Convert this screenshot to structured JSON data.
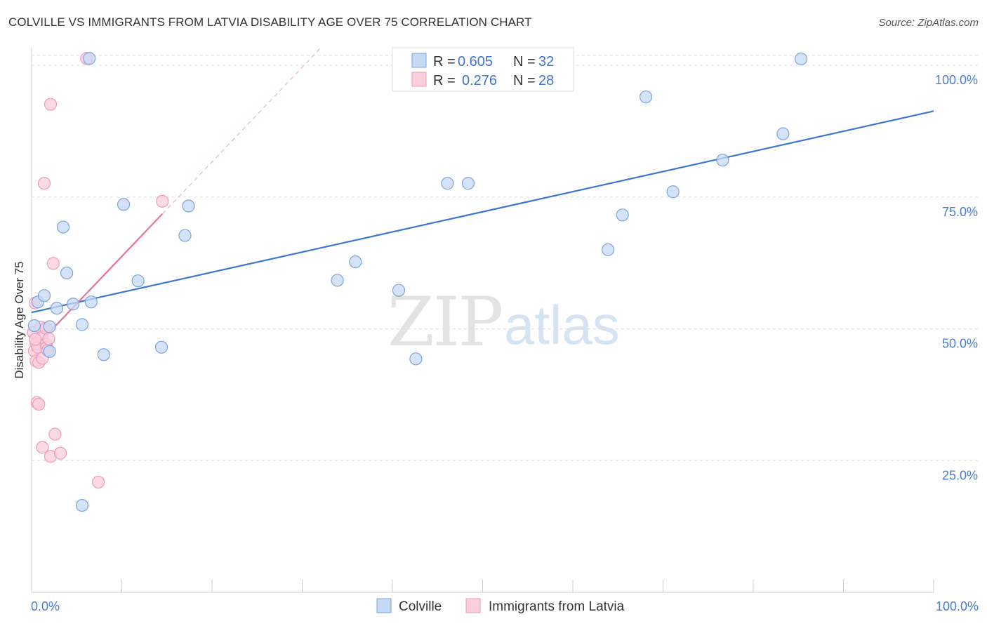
{
  "title": "COLVILLE VS IMMIGRANTS FROM LATVIA DISABILITY AGE OVER 75 CORRELATION CHART",
  "source": "Source: ZipAtlas.com",
  "watermark": {
    "zip": "ZIP",
    "atlas": "atlas"
  },
  "colors": {
    "blue": "#3a78d0",
    "blue_fill": "#c6d9f4",
    "blue_stroke": "#7ba4dc",
    "pink": "#e8729a",
    "pink_fill": "#f9cedd",
    "pink_stroke": "#ee9ab8",
    "grid": "#dddddd",
    "tick_text": "#4a7bd0"
  },
  "legend": {
    "r_label": "R =",
    "n_label": "N =",
    "rows": [
      {
        "r": "0.605",
        "n": "32"
      },
      {
        "r": "0.276",
        "n": "28"
      }
    ]
  },
  "chart_data": {
    "type": "scatter",
    "title": "COLVILLE VS IMMIGRANTS FROM LATVIA DISABILITY AGE OVER 75 CORRELATION CHART",
    "xlabel": "",
    "ylabel": "Disability Age Over 75",
    "xlim": [
      0,
      100
    ],
    "ylim": [
      0,
      102
    ],
    "x_tick_labels": [
      "0.0%",
      "100.0%"
    ],
    "y_ticks": [
      25,
      50,
      75,
      100
    ],
    "y_tick_labels": [
      "25.0%",
      "50.0%",
      "75.0%",
      "100.0%"
    ],
    "grid": true,
    "legend_position": "top-center",
    "series": [
      {
        "name": "Colville",
        "color": "#3a78d0",
        "points": [
          [
            0.3,
            50.6
          ],
          [
            0.7,
            55.1
          ],
          [
            1.4,
            56.3
          ],
          [
            2.0,
            45.7
          ],
          [
            2.0,
            50.4
          ],
          [
            2.8,
            53.9
          ],
          [
            3.5,
            69.3
          ],
          [
            3.9,
            60.6
          ],
          [
            4.6,
            54.7
          ],
          [
            5.6,
            50.8
          ],
          [
            5.6,
            16.5
          ],
          [
            6.4,
            101.3
          ],
          [
            6.6,
            55.1
          ],
          [
            8.0,
            45.1
          ],
          [
            10.2,
            73.6
          ],
          [
            11.8,
            59.1
          ],
          [
            14.4,
            46.5
          ],
          [
            17.0,
            67.7
          ],
          [
            17.4,
            73.3
          ],
          [
            33.9,
            59.2
          ],
          [
            35.9,
            62.7
          ],
          [
            40.7,
            57.3
          ],
          [
            42.6,
            44.3
          ],
          [
            46.1,
            77.6
          ],
          [
            48.4,
            77.6
          ],
          [
            63.9,
            65.0
          ],
          [
            65.5,
            71.6
          ],
          [
            68.1,
            94.0
          ],
          [
            71.1,
            76.0
          ],
          [
            76.6,
            82.0
          ],
          [
            83.3,
            87.0
          ],
          [
            85.3,
            101.2
          ]
        ],
        "trend": {
          "x": [
            0,
            100
          ],
          "y": [
            53.1,
            91.3
          ]
        }
      },
      {
        "name": "Immigrants from Latvia",
        "color": "#e8729a",
        "points": [
          [
            0.2,
            49.3
          ],
          [
            0.3,
            45.8
          ],
          [
            0.4,
            54.9
          ],
          [
            0.5,
            43.9
          ],
          [
            0.5,
            47.2
          ],
          [
            0.6,
            36.0
          ],
          [
            0.7,
            46.5
          ],
          [
            0.8,
            35.7
          ],
          [
            0.8,
            43.6
          ],
          [
            1.0,
            50.3
          ],
          [
            1.1,
            48.4
          ],
          [
            1.2,
            44.4
          ],
          [
            1.2,
            27.5
          ],
          [
            1.4,
            77.6
          ],
          [
            1.6,
            50.1
          ],
          [
            1.6,
            47.1
          ],
          [
            1.7,
            46.5
          ],
          [
            1.9,
            48.1
          ],
          [
            2.1,
            25.8
          ],
          [
            2.1,
            92.6
          ],
          [
            2.4,
            62.4
          ],
          [
            2.6,
            30.0
          ],
          [
            3.2,
            26.4
          ],
          [
            6.1,
            101.3
          ],
          [
            7.4,
            20.9
          ],
          [
            14.5,
            74.2
          ],
          [
            0.4,
            48.0
          ],
          [
            1.8,
            45.9
          ]
        ],
        "trend": {
          "x": [
            0,
            14.5
          ],
          "y": [
            45.8,
            71.8
          ]
        },
        "trend_extension": {
          "x": [
            14.5,
            32
          ],
          "y": [
            71.8,
            103.2
          ]
        }
      }
    ]
  },
  "bottom_legend": [
    {
      "label": "Colville"
    },
    {
      "label": "Immigrants from Latvia"
    }
  ]
}
